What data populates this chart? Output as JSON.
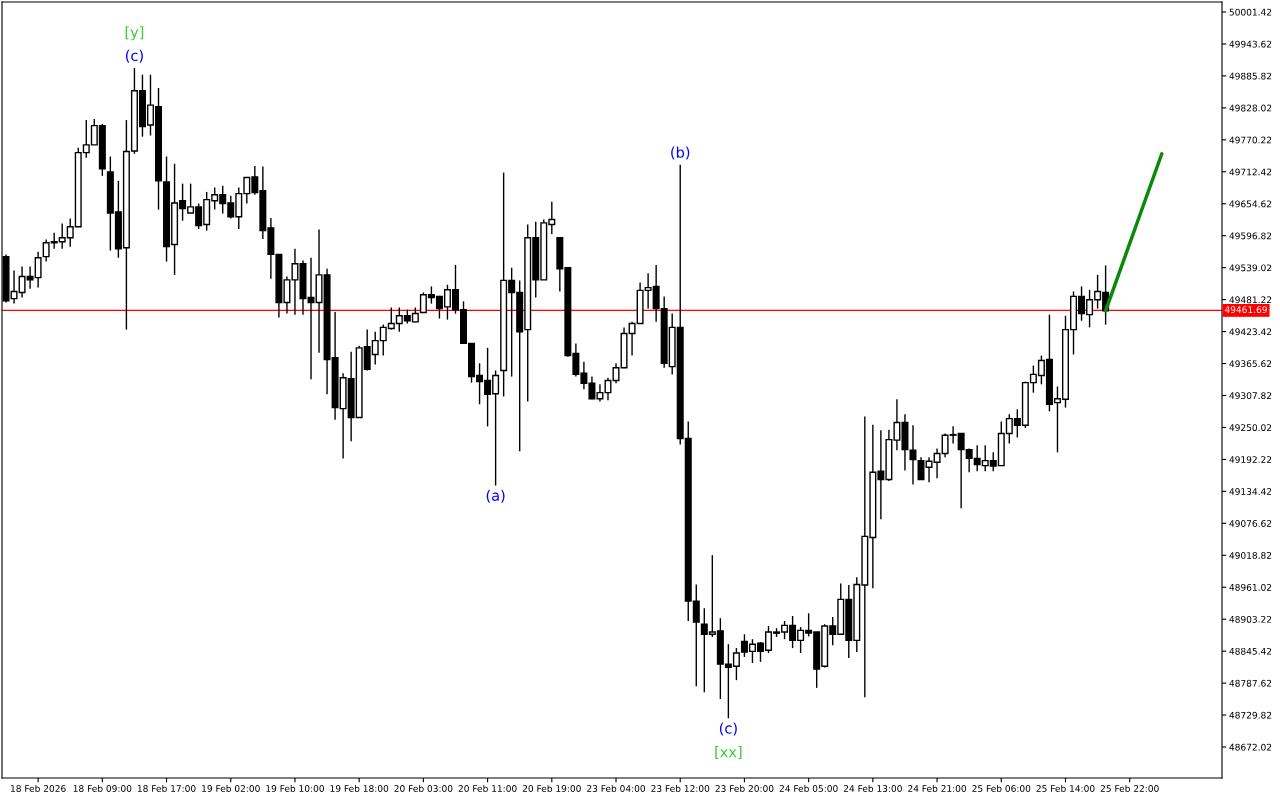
{
  "chart_data": {
    "type": "candlestick",
    "categories": [
      null,
      null,
      null,
      null,
      "18 Feb 2026",
      null,
      null,
      null,
      null,
      null,
      null,
      null,
      "18 Feb 09:00",
      null,
      null,
      null,
      null,
      null,
      null,
      null,
      "18 Feb 17:00",
      null,
      null,
      null,
      null,
      null,
      null,
      null,
      "19 Feb 02:00",
      null,
      null,
      null,
      null,
      null,
      null,
      null,
      "19 Feb 10:00",
      null,
      null,
      null,
      null,
      null,
      null,
      null,
      "19 Feb 18:00",
      null,
      null,
      null,
      null,
      null,
      null,
      null,
      "20 Feb 03:00",
      null,
      null,
      null,
      null,
      null,
      null,
      null,
      "20 Feb 11:00",
      null,
      null,
      null,
      null,
      null,
      null,
      null,
      "20 Feb 19:00",
      null,
      null,
      null,
      null,
      null,
      null,
      null,
      "23 Feb 04:00",
      null,
      null,
      null,
      null,
      null,
      null,
      null,
      "23 Feb 12:00",
      null,
      null,
      null,
      null,
      null,
      null,
      null,
      "23 Feb 20:00",
      null,
      null,
      null,
      null,
      null,
      null,
      null,
      "24 Feb 05:00",
      null,
      null,
      null,
      null,
      null,
      null,
      null,
      "24 Feb 13:00",
      null,
      null,
      null,
      null,
      null,
      null,
      null,
      "24 Feb 21:00",
      null,
      null,
      null,
      null,
      null,
      null,
      null,
      "25 Feb 06:00",
      null,
      null,
      null,
      null,
      null,
      null,
      null,
      "25 Feb 14:00",
      null,
      null,
      null,
      null,
      null,
      null,
      null,
      "25 Feb 22:00",
      null,
      null,
      null,
      null,
      null,
      null,
      null,
      null,
      null,
      null,
      null
    ],
    "series": [
      {
        "color": "#000000",
        "ohlc": [
          [
            49559,
            49563,
            49476,
            49479
          ],
          [
            49483,
            49534,
            49474,
            49496
          ],
          [
            49494,
            49541,
            49485,
            49523
          ],
          [
            49523,
            49541,
            49501,
            49517
          ],
          [
            49521,
            49568,
            49503,
            49557
          ],
          [
            49559,
            49590,
            49550,
            49584
          ],
          [
            49586,
            49602,
            49573,
            49584
          ],
          [
            49586,
            49619,
            49573,
            49593
          ],
          [
            49593,
            49628,
            49577,
            49613
          ],
          [
            49613,
            49756,
            49613,
            49747
          ],
          [
            49747,
            49806,
            49738,
            49761
          ],
          [
            49761,
            49808,
            49761,
            49796
          ],
          [
            49796,
            49799,
            49705,
            49718
          ],
          [
            49712,
            49740,
            49570,
            49638
          ],
          [
            49640,
            49696,
            49557,
            49573
          ],
          [
            49575,
            49806,
            49427,
            49749
          ],
          [
            49750,
            49900,
            49745,
            49859
          ],
          [
            49859,
            49888,
            49776,
            49794
          ],
          [
            49797,
            49888,
            49778,
            49833
          ],
          [
            49830,
            49864,
            49644,
            49696
          ],
          [
            49694,
            49740,
            49550,
            49577
          ],
          [
            49581,
            49727,
            49526,
            49656
          ],
          [
            49660,
            49691,
            49624,
            49646
          ],
          [
            49638,
            49691,
            49638,
            49649
          ],
          [
            49649,
            49655,
            49609,
            49615
          ],
          [
            49617,
            49676,
            49606,
            49662
          ],
          [
            49660,
            49684,
            49644,
            49671
          ],
          [
            49671,
            49687,
            49637,
            49655
          ],
          [
            49656,
            49669,
            49628,
            49631
          ],
          [
            49631,
            49684,
            49609,
            49673
          ],
          [
            49673,
            49702,
            49655,
            49702
          ],
          [
            49703,
            49723,
            49671,
            49675
          ],
          [
            49678,
            49722,
            49591,
            49606
          ],
          [
            49611,
            49629,
            49519,
            49563
          ],
          [
            49563,
            49563,
            49449,
            49476
          ],
          [
            49476,
            49523,
            49456,
            49517
          ],
          [
            49517,
            49573,
            49454,
            49546
          ],
          [
            49546,
            49552,
            49454,
            49483
          ],
          [
            49485,
            49557,
            49337,
            49476
          ],
          [
            49476,
            49608,
            49385,
            49526
          ],
          [
            49526,
            49537,
            49310,
            49373
          ],
          [
            49376,
            49459,
            49264,
            49286
          ],
          [
            49284,
            49348,
            49194,
            49340
          ],
          [
            49338,
            49387,
            49225,
            49268
          ],
          [
            49268,
            49398,
            49268,
            49394
          ],
          [
            49396,
            49427,
            49353,
            49355
          ],
          [
            49382,
            49423,
            49364,
            49407
          ],
          [
            49407,
            49436,
            49380,
            49431
          ],
          [
            49429,
            49467,
            49427,
            49438
          ],
          [
            49438,
            49467,
            49423,
            49452
          ],
          [
            49452,
            49463,
            49438,
            49443
          ],
          [
            49441,
            49467,
            49440,
            49456
          ],
          [
            49458,
            49494,
            49458,
            49490
          ],
          [
            49490,
            49505,
            49474,
            49485
          ],
          [
            49487,
            49488,
            49447,
            49465
          ],
          [
            49468,
            49508,
            49445,
            49499
          ],
          [
            49499,
            49544,
            49456,
            49463
          ],
          [
            49463,
            49478,
            49402,
            49402
          ],
          [
            49402,
            49402,
            49331,
            49342
          ],
          [
            49344,
            49366,
            49292,
            49333
          ],
          [
            49335,
            49394,
            49252,
            49310
          ],
          [
            49311,
            49353,
            49145,
            49344
          ],
          [
            49353,
            49711,
            49306,
            49516
          ],
          [
            49516,
            49539,
            49342,
            49494
          ],
          [
            49494,
            49516,
            49207,
            49423
          ],
          [
            49427,
            49617,
            49297,
            49593
          ],
          [
            49593,
            49622,
            49485,
            49517
          ],
          [
            49517,
            49626,
            49517,
            49620
          ],
          [
            49617,
            49658,
            49600,
            49626
          ],
          [
            49593,
            49593,
            49496,
            49537
          ],
          [
            49539,
            49539,
            49378,
            49380
          ],
          [
            49384,
            49402,
            49342,
            49346
          ],
          [
            49348,
            49369,
            49319,
            49330
          ],
          [
            49330,
            49342,
            49301,
            49302
          ],
          [
            49302,
            49328,
            49297,
            49313
          ],
          [
            49313,
            49340,
            49299,
            49335
          ],
          [
            49335,
            49366,
            49330,
            49358
          ],
          [
            49358,
            49431,
            49357,
            49420
          ],
          [
            49420,
            49441,
            49380,
            49438
          ],
          [
            49438,
            49512,
            49438,
            49498
          ],
          [
            49498,
            49529,
            49465,
            49503
          ],
          [
            49505,
            49544,
            49441,
            49465
          ],
          [
            49465,
            49487,
            49358,
            49366
          ],
          [
            49360,
            49456,
            49346,
            49431
          ],
          [
            49431,
            49725,
            49219,
            49230
          ],
          [
            49230,
            49261,
            48900,
            48936
          ],
          [
            48936,
            48966,
            48782,
            48898
          ],
          [
            48894,
            48923,
            48771,
            48876
          ],
          [
            48876,
            49019,
            48871,
            48880
          ],
          [
            48882,
            48905,
            48759,
            48822
          ],
          [
            48822,
            48858,
            48724,
            48816
          ],
          [
            48818,
            48851,
            48793,
            48842
          ],
          [
            48863,
            48876,
            48835,
            48844
          ],
          [
            48845,
            48867,
            48824,
            48858
          ],
          [
            48860,
            48862,
            48826,
            48845
          ],
          [
            48847,
            48891,
            48842,
            48880
          ],
          [
            48880,
            48887,
            48871,
            48878
          ],
          [
            48880,
            48900,
            48867,
            48892
          ],
          [
            48892,
            48909,
            48851,
            48865
          ],
          [
            48865,
            48889,
            48842,
            48883
          ],
          [
            48883,
            48914,
            48872,
            48878
          ],
          [
            48880,
            48880,
            48779,
            48813
          ],
          [
            48818,
            48894,
            48816,
            48891
          ],
          [
            48891,
            48907,
            48856,
            48876
          ],
          [
            48876,
            48968,
            48876,
            48939
          ],
          [
            48939,
            48965,
            48833,
            48865
          ],
          [
            48865,
            48979,
            48844,
            48966
          ],
          [
            48965,
            49270,
            48762,
            49053
          ],
          [
            49051,
            49255,
            48959,
            49169
          ],
          [
            49171,
            49245,
            49084,
            49156
          ],
          [
            49156,
            49246,
            49153,
            49228
          ],
          [
            49227,
            49301,
            49209,
            49259
          ],
          [
            49259,
            49274,
            49172,
            49210
          ],
          [
            49209,
            49254,
            49147,
            49192
          ],
          [
            49190,
            49196,
            49156,
            49156
          ],
          [
            49178,
            49196,
            49151,
            49189
          ],
          [
            49187,
            49212,
            49158,
            49203
          ],
          [
            49203,
            49239,
            49196,
            49236
          ],
          [
            49237,
            49252,
            49221,
            49236
          ],
          [
            49239,
            49239,
            49104,
            49210
          ],
          [
            49210,
            49212,
            49169,
            49194
          ],
          [
            49194,
            49218,
            49171,
            49183
          ],
          [
            49181,
            49218,
            49171,
            49190
          ],
          [
            49190,
            49205,
            49171,
            49180
          ],
          [
            49181,
            49261,
            49181,
            49239
          ],
          [
            49239,
            49274,
            49221,
            49266
          ],
          [
            49266,
            49283,
            49232,
            49254
          ],
          [
            49254,
            49333,
            49249,
            49331
          ],
          [
            49331,
            49362,
            49313,
            49346
          ],
          [
            49344,
            49380,
            49328,
            49371
          ],
          [
            49373,
            49454,
            49279,
            49292
          ],
          [
            49295,
            49324,
            49205,
            49302
          ],
          [
            49301,
            49452,
            49286,
            49427
          ],
          [
            49427,
            49496,
            49382,
            49487
          ],
          [
            49487,
            49505,
            49443,
            49456
          ],
          [
            49454,
            49499,
            49431,
            49481
          ],
          [
            49481,
            49526,
            49465,
            49496
          ],
          [
            49494,
            49543,
            49436,
            49461
          ],
          null,
          null,
          null,
          null,
          null,
          null,
          null,
          null,
          null,
          null,
          null,
          null,
          null,
          null
        ]
      },
      {
        "type": "line",
        "color": "#0a8a0a",
        "values": [
          null,
          null,
          null,
          null,
          null,
          null,
          null,
          null,
          null,
          null,
          null,
          null,
          null,
          null,
          null,
          null,
          null,
          null,
          null,
          null,
          null,
          null,
          null,
          null,
          null,
          null,
          null,
          null,
          null,
          null,
          null,
          null,
          null,
          null,
          null,
          null,
          null,
          null,
          null,
          null,
          null,
          null,
          null,
          null,
          null,
          null,
          null,
          null,
          null,
          null,
          null,
          null,
          null,
          null,
          null,
          null,
          null,
          null,
          null,
          null,
          null,
          null,
          null,
          null,
          null,
          null,
          null,
          null,
          null,
          null,
          null,
          null,
          null,
          null,
          null,
          null,
          null,
          null,
          null,
          null,
          null,
          null,
          null,
          null,
          null,
          null,
          null,
          null,
          null,
          null,
          null,
          null,
          null,
          null,
          null,
          null,
          null,
          null,
          null,
          null,
          null,
          null,
          null,
          null,
          null,
          null,
          null,
          null,
          null,
          null,
          null,
          null,
          null,
          null,
          null,
          null,
          null,
          null,
          null,
          null,
          null,
          null,
          null,
          null,
          null,
          null,
          null,
          null,
          null,
          null,
          null,
          null,
          null,
          null,
          null,
          null,
          null,
          49461,
          null,
          null,
          null,
          null,
          null,
          null,
          49745,
          null,
          null,
          null,
          null,
          null,
          null,
          null
        ]
      }
    ],
    "ylim": [
      48616,
      50019.5
    ],
    "yticks": [
      50001.42,
      49943.62,
      49885.82,
      49828.02,
      49770.22,
      49712.42,
      49654.62,
      49596.82,
      49539.02,
      49481.22,
      49423.42,
      49365.62,
      49307.82,
      49250.02,
      49192.22,
      49134.42,
      49076.62,
      49018.82,
      48961.02,
      48903.22,
      48845.42,
      48787.62,
      48729.82,
      48672.02
    ],
    "ref_lines": [
      {
        "axis": "y",
        "value": 49461.69,
        "label": "49461.69",
        "color": "#ff0000"
      }
    ],
    "annotations": [
      {
        "text": "(c)",
        "y": 49900
      },
      {
        "text": "[y]",
        "y": 49900
      },
      {
        "text": "(b)",
        "y": 49725
      },
      {
        "text": "(a)",
        "y": 49145
      },
      {
        "text": "(c)",
        "y": 48724
      },
      {
        "text": "[xx]",
        "y": 48724
      }
    ],
    "grid": false,
    "legend": false
  }
}
